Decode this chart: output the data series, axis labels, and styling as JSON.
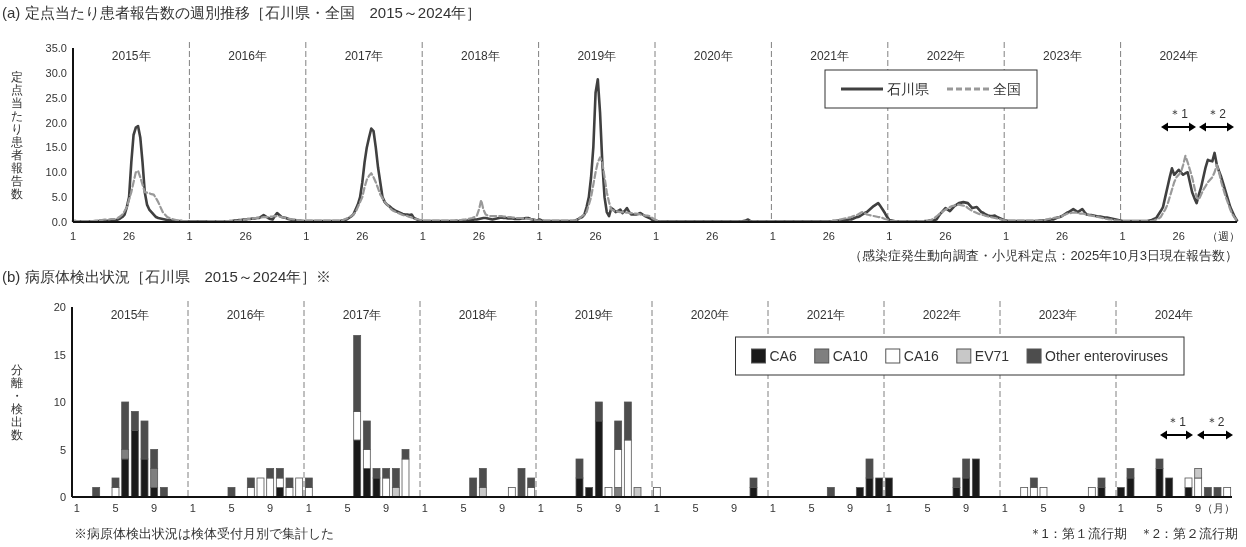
{
  "chart_data": [
    {
      "type": "line",
      "title": "(a) 定点当たり患者報告数の週別推移［石川県・全国　2015～2024年］",
      "ylabel": "定点当たり患者報告数",
      "xlabel": "（週）",
      "ylim": [
        0,
        35
      ],
      "yticks": [
        {
          "value": 0,
          "label": "0.0"
        },
        {
          "value": 5,
          "label": "5.0"
        },
        {
          "value": 10,
          "label": "10.0"
        },
        {
          "value": 15,
          "label": "15.0"
        },
        {
          "value": 20,
          "label": "20.0"
        },
        {
          "value": 25,
          "label": "25.0"
        },
        {
          "value": 30,
          "label": "30.0"
        },
        {
          "value": 35,
          "label": "35.0"
        }
      ],
      "categories": [
        "1",
        null,
        null,
        null,
        null,
        null,
        null,
        null,
        null,
        null,
        null,
        null,
        null,
        null,
        null,
        null,
        null,
        null,
        null,
        null,
        null,
        null,
        null,
        null,
        null,
        "26",
        null,
        null,
        null,
        null,
        null,
        null,
        null,
        null,
        null,
        null,
        null,
        null,
        null,
        null,
        null,
        null,
        null,
        null,
        null,
        null,
        null,
        null,
        null,
        null,
        null,
        null,
        "1",
        null,
        null,
        null,
        null,
        null,
        null,
        null,
        null,
        null,
        null,
        null,
        null,
        null,
        null,
        null,
        null,
        null,
        null,
        null,
        null,
        null,
        null,
        null,
        null,
        "26",
        null,
        null,
        null,
        null,
        null,
        null,
        null,
        null,
        null,
        null,
        null,
        null,
        null,
        null,
        null,
        null,
        null,
        null,
        null,
        null,
        null,
        null,
        null,
        null,
        null,
        null,
        "1",
        null,
        null,
        null,
        null,
        null,
        null,
        null,
        null,
        null,
        null,
        null,
        null,
        null,
        null,
        null,
        null,
        null,
        null,
        null,
        null,
        null,
        null,
        null,
        null,
        "26",
        null,
        null,
        null,
        null,
        null,
        null,
        null,
        null,
        null,
        null,
        null,
        null,
        null,
        null,
        null,
        null,
        null,
        null,
        null,
        null,
        null,
        null,
        null,
        null,
        null,
        null,
        "1",
        null,
        null,
        null,
        null,
        null,
        null,
        null,
        null,
        null,
        null,
        null,
        null,
        null,
        null,
        null,
        null,
        null,
        null,
        null,
        null,
        null,
        null,
        null,
        null,
        "26",
        null,
        null,
        null,
        null,
        null,
        null,
        null,
        null,
        null,
        null,
        null,
        null,
        null,
        null,
        null,
        null,
        null,
        null,
        null,
        null,
        null,
        null,
        null,
        null,
        null,
        null,
        "1",
        null,
        null,
        null,
        null,
        null,
        null,
        null,
        null,
        null,
        null,
        null,
        null,
        null,
        null,
        null,
        null,
        null,
        null,
        null,
        null,
        null,
        null,
        null,
        null,
        "26",
        null,
        null,
        null,
        null,
        null,
        null,
        null,
        null,
        null,
        null,
        null,
        null,
        null,
        null,
        null,
        null,
        null,
        null,
        null,
        null,
        null,
        null,
        null,
        null,
        null,
        null,
        "1",
        null,
        null,
        null,
        null,
        null,
        null,
        null,
        null,
        null,
        null,
        null,
        null,
        null,
        null,
        null,
        null,
        null,
        null,
        null,
        null,
        null,
        null,
        null,
        null,
        "26",
        null,
        null,
        null,
        null,
        null,
        null,
        null,
        null,
        null,
        null,
        null,
        null,
        null,
        null,
        null,
        null,
        null,
        null,
        null,
        null,
        null,
        null,
        null,
        null,
        null,
        null,
        "1",
        null,
        null,
        null,
        null,
        null,
        null,
        null,
        null,
        null,
        null,
        null,
        null,
        null,
        null,
        null,
        null,
        null,
        null,
        null,
        null,
        null,
        null,
        null,
        null,
        "26",
        null,
        null,
        null,
        null,
        null,
        null,
        null,
        null,
        null,
        null,
        null,
        null,
        null,
        null,
        null,
        null,
        null,
        null,
        null,
        null,
        null,
        null,
        null,
        null,
        null,
        null,
        "1",
        null,
        null,
        null,
        null,
        null,
        null,
        null,
        null,
        null,
        null,
        null,
        null,
        null,
        null,
        null,
        null,
        null,
        null,
        null,
        null,
        null,
        null,
        null,
        null,
        "26",
        null,
        null,
        null,
        null,
        null,
        null,
        null,
        null,
        null,
        null,
        null,
        null,
        null,
        null,
        null,
        null,
        null,
        null,
        null,
        null,
        null,
        null,
        null,
        null,
        null,
        null,
        "1",
        null,
        null,
        null,
        null,
        null,
        null,
        null,
        null,
        null,
        null,
        null,
        null,
        null,
        null,
        null,
        null,
        null,
        null,
        null,
        null,
        null,
        null,
        null,
        null,
        "26",
        null,
        null,
        null,
        null,
        null,
        null,
        null,
        null,
        null,
        null,
        null,
        null,
        null,
        null,
        null,
        null,
        null,
        null,
        null,
        null,
        null,
        null,
        null,
        null,
        null,
        null,
        "1",
        null,
        null,
        null,
        null,
        null,
        null,
        null,
        null,
        null,
        null,
        null,
        null,
        null,
        null,
        null,
        null,
        null,
        null,
        null,
        null,
        null,
        null,
        null,
        null,
        "26",
        null,
        null,
        null,
        null,
        null,
        null,
        null,
        null,
        null,
        null,
        null,
        null,
        null,
        null,
        null,
        null,
        null,
        null,
        null,
        null,
        null,
        null,
        null,
        null,
        null,
        null
      ],
      "legend": "top right",
      "grid": false,
      "annotations": [
        "2015年",
        "2016年",
        "2017年",
        "2018年",
        "2019年",
        "2020年",
        "2021年",
        "2022年",
        "2023年",
        "2024年",
        "＊1",
        "＊2",
        "（感染症発生動向調査・小児科定点：2025年10月3日現在報告数）"
      ],
      "series": [
        {
          "name": "石川県",
          "color": "#404040",
          "line_style": "solid",
          "values": [
            0.2,
            0.2,
            0.1,
            0.1,
            0.1,
            0.1,
            0.1,
            0.1,
            0.1,
            0.1,
            0.1,
            0.2,
            0.2,
            0.2,
            0.2,
            0.2,
            0.3,
            0.3,
            0.3,
            0.3,
            0.5,
            0.7,
            1.0,
            1.5,
            3,
            5,
            12,
            17.5,
            19,
            19.3,
            17,
            12,
            6,
            3.5,
            2.5,
            2,
            1.5,
            1,
            0.8,
            0.7,
            0.6,
            0.5,
            0.4,
            0.4,
            0.3,
            0.3,
            0.2,
            0.2,
            0.2,
            0.1,
            0.1,
            0.1,
            0.1,
            0.1,
            0.1,
            0.1,
            0.1,
            0.1,
            0.1,
            0.1,
            0.1,
            0.1,
            0.1,
            0.1,
            0.1,
            0.1,
            0.1,
            0.1,
            0.1,
            0.1,
            0.2,
            0.2,
            0.3,
            0.3,
            0.4,
            0.4,
            0.5,
            0.5,
            0.6,
            0.6,
            0.7,
            0.7,
            0.8,
            0.8,
            1.1,
            1.4,
            1.1,
            0.8,
            0.6,
            0.5,
            1.2,
            1.8,
            1.4,
            1.0,
            0.9,
            0.8,
            0.6,
            0.5,
            0.4,
            0.4,
            0.3,
            0.3,
            0.2,
            0.2,
            0.2,
            0.2,
            0.2,
            0.2,
            0.2,
            0.2,
            0.2,
            0.2,
            0.2,
            0.2,
            0.2,
            0.2,
            0.2,
            0.2,
            0.2,
            0.2,
            0.3,
            0.4,
            0.5,
            0.8,
            1.1,
            1.5,
            2.5,
            3.5,
            5,
            8,
            12,
            15,
            17,
            18.8,
            18.3,
            15,
            11,
            8,
            5,
            4,
            3.5,
            3.2,
            2.8,
            2.5,
            2.2,
            2,
            1.8,
            1.6,
            1.5,
            1.5,
            1.4,
            1.5,
            0.8,
            0.6,
            0.4,
            0.3,
            0.2,
            0.2,
            0.2,
            0.2,
            0.2,
            0.2,
            0.2,
            0.2,
            0.2,
            0.2,
            0.2,
            0.2,
            0.2,
            0.2,
            0.2,
            0.2,
            0.2,
            0.2,
            0.2,
            0.3,
            0.3,
            0.4,
            0.4,
            0.5,
            0.5,
            0.6,
            0.7,
            0.8,
            0.8,
            0.7,
            0.6,
            0.5,
            0.6,
            0.7,
            0.8,
            0.9,
            0.8,
            0.8,
            0.7,
            0.7,
            0.7,
            0.6,
            0.6,
            0.6,
            0.7,
            0.7,
            0.8,
            0.8,
            0.6,
            0.5,
            0.4,
            0.3,
            0.5,
            0.3,
            0.2,
            0.2,
            0.2,
            0.2,
            0.2,
            0.2,
            0.2,
            0.2,
            0.2,
            0.2,
            0.2,
            0.2,
            0.2,
            0.2,
            0.3,
            0.5,
            0.8,
            1.0,
            1.5,
            3,
            5,
            9,
            15,
            26,
            28.7,
            22,
            12,
            5,
            2,
            1.2,
            2.8,
            2.5,
            2,
            2.2,
            2.5,
            1.8,
            2.2,
            2.8,
            2.0,
            1.5,
            1.5,
            1.5,
            1.6,
            1.8,
            1.5,
            1.2,
            1.0,
            0.8,
            0.5,
            0.3,
            0.2,
            0.1,
            0.1,
            0.1,
            0.1,
            0.1,
            0.1,
            0.1,
            0.1,
            0.1,
            0.1,
            0.1,
            0.1,
            0.1,
            0.1,
            0.1,
            0.1,
            0.1,
            0.1,
            0.1,
            0.1,
            0.1,
            0.1,
            0.1,
            0.1,
            0.1,
            0.1,
            0.1,
            0.1,
            0.1,
            0.1,
            0.1,
            0.1,
            0.1,
            0.1,
            0.1,
            0.1,
            0.1,
            0.1,
            0.2,
            0.3,
            0.5,
            0.2,
            0.1,
            0.1,
            0.1,
            0.1,
            0.1,
            0.1,
            0.1,
            0.1,
            0.1,
            0.1,
            0.1,
            0.1,
            0.1,
            0.1,
            0.1,
            0.1,
            0.1,
            0.1,
            0.1,
            0.1,
            0.1,
            0.1,
            0.1,
            0.1,
            0.1,
            0.1,
            0.1,
            0.1,
            0.1,
            0.1,
            0.1,
            0.1,
            0.1,
            0.1,
            0.1,
            0.1,
            0.2,
            0.2,
            0.3,
            0.3,
            0.3,
            0.4,
            0.4,
            0.5,
            0.5,
            0.7,
            0.9,
            1.0,
            1.2,
            1.5,
            1.8,
            2,
            2.4,
            2.8,
            3.2,
            3.5,
            3.8,
            3.2,
            2.5,
            1.8,
            1.0,
            0.4,
            0.3,
            0.2,
            0.1,
            0.1,
            0.1,
            0.1,
            0.1,
            0.1,
            0.1,
            0.1,
            0.1,
            0.1,
            0.1,
            0.1,
            0.1,
            0.2,
            0.2,
            0.3,
            0.3,
            0.4,
            0.5,
            1.2,
            1.8,
            2.3,
            2.8,
            2.5,
            2.2,
            2.7,
            3.2,
            3.5,
            3.8,
            3.9,
            4.0,
            3.9,
            3.8,
            3.3,
            2.8,
            2.9,
            3.0,
            2.5,
            2.0,
            1.8,
            1.5,
            1.3,
            1.2,
            1.2,
            1.3,
            1.0,
            0.8,
            0.6,
            0.4,
            0.3,
            0.2,
            0.2,
            0.2,
            0.2,
            0.2,
            0.2,
            0.2,
            0.2,
            0.2,
            0.2,
            0.2,
            0.2,
            0.2,
            0.2,
            0.3,
            0.3,
            0.3,
            0.4,
            0.4,
            0.5,
            0.5,
            0.7,
            0.9,
            1.0,
            1.2,
            1.5,
            1.8,
            2.0,
            2.3,
            2.6,
            2.3,
            2.0,
            2.3,
            2.6,
            2.0,
            1.5,
            1.4,
            1.4,
            1.3,
            1.2,
            1.1,
            1.1,
            1.0,
            0.9,
            0.9,
            0.8,
            0.7,
            0.6,
            0.5,
            0.4,
            0.3,
            0.2,
            0.2,
            0.2,
            0.2,
            0.2,
            0.2,
            0.2,
            0.2,
            0.2,
            0.2,
            0.2,
            0.2,
            0.3,
            0.4,
            0.6,
            0.8,
            1.5,
            2.2,
            3,
            5,
            7,
            9,
            10.8,
            9.5,
            10,
            10.5,
            10,
            9.5,
            9.8,
            10,
            8,
            6,
            4.8,
            3.8,
            5.5,
            7,
            9,
            11,
            12.5,
            12.3,
            12.2,
            13.9,
            11.5,
            10.2,
            9,
            7.5,
            6,
            4.5,
            3,
            2,
            1,
            0.3
          ]
        },
        {
          "name": "全国",
          "color": "#999999",
          "line_style": "dashed",
          "values": [
            0.2,
            0.2,
            0.2,
            0.2,
            0.2,
            0.2,
            0.2,
            0.2,
            0.2,
            0.2,
            0.3,
            0.3,
            0.4,
            0.4,
            0.5,
            0.5,
            0.5,
            0.6,
            0.6,
            0.6,
            0.8,
            1.1,
            1.5,
            2.2,
            3,
            4.5,
            6,
            8,
            10,
            10.3,
            9,
            7.5,
            6,
            5.9,
            5.8,
            5.6,
            5.5,
            4.8,
            4,
            3,
            2,
            1.5,
            1,
            0.8,
            0.6,
            0.5,
            0.4,
            0.3,
            0.3,
            0.2,
            0.2,
            0.2,
            0.1,
            0.1,
            0.1,
            0.1,
            0.1,
            0.1,
            0.1,
            0.1,
            0.2,
            0.2,
            0.2,
            0.2,
            0.2,
            0.2,
            0.2,
            0.2,
            0.2,
            0.2,
            0.2,
            0.2,
            0.2,
            0.2,
            0.3,
            0.4,
            0.4,
            0.5,
            0.6,
            0.6,
            0.7,
            0.8,
            0.8,
            0.9,
            0.9,
            1.0,
            1.0,
            1.0,
            1.1,
            1.1,
            1.2,
            1.2,
            1.1,
            1.0,
            0.9,
            0.8,
            0.7,
            0.6,
            0.5,
            0.5,
            0.4,
            0.4,
            0.3,
            0.3,
            0.3,
            0.3,
            0.3,
            0.3,
            0.3,
            0.3,
            0.3,
            0.3,
            0.3,
            0.3,
            0.3,
            0.3,
            0.3,
            0.3,
            0.3,
            0.3,
            0.3,
            0.5,
            0.7,
            0.9,
            1.2,
            1.5,
            2,
            3,
            4,
            5,
            7,
            8.5,
            9.3,
            9.8,
            9,
            8,
            6.8,
            5.5,
            4.8,
            4,
            3.5,
            3,
            2.5,
            2.2,
            2,
            1.8,
            1.6,
            1.4,
            1.3,
            1.2,
            1.0,
            0.9,
            0.7,
            0.6,
            0.5,
            0.4,
            0.3,
            0.3,
            0.3,
            0.3,
            0.3,
            0.3,
            0.3,
            0.3,
            0.3,
            0.3,
            0.3,
            0.3,
            0.3,
            0.3,
            0.3,
            0.4,
            0.4,
            0.4,
            0.5,
            0.5,
            0.6,
            0.7,
            0.8,
            1.0,
            1.2,
            2.5,
            4.4,
            2.5,
            1.5,
            1.3,
            1.2,
            1.2,
            1.2,
            1.2,
            1.2,
            1.2,
            1.1,
            1.1,
            1.0,
            1.0,
            0.9,
            0.9,
            0.8,
            0.8,
            0.8,
            0.7,
            0.7,
            0.6,
            0.6,
            0.5,
            0.4,
            0.3,
            0.3,
            0.2,
            0.3,
            0.3,
            0.3,
            0.3,
            0.3,
            0.3,
            0.3,
            0.3,
            0.3,
            0.3,
            0.3,
            0.3,
            0.3,
            0.3,
            0.3,
            0.5,
            0.8,
            1.2,
            1.5,
            2,
            3.5,
            5,
            7.5,
            10,
            12,
            13,
            12,
            9,
            6,
            4,
            2.5,
            2.3,
            2.2,
            2.1,
            2.0,
            2,
            1.9,
            1.9,
            1.8,
            1.8,
            1.7,
            1.7,
            1.6,
            1.5,
            1.4,
            1.3,
            1.3,
            1.2,
            0.9,
            0.6,
            0.4,
            0.2,
            0.1,
            0.1,
            0.1,
            0.1,
            0.1,
            0.1,
            0.1,
            0.1,
            0.1,
            0.1,
            0.1,
            0.1,
            0.1,
            0.1,
            0.1,
            0.1,
            0.1,
            0.1,
            0.1,
            0.1,
            0.1,
            0.1,
            0.1,
            0.1,
            0.1,
            0.1,
            0.1,
            0.1,
            0.1,
            0.1,
            0.1,
            0.1,
            0.1,
            0.1,
            0.1,
            0.1,
            0.1,
            0.1,
            0.1,
            0.1,
            0.1,
            0.1,
            0.1,
            0.1,
            0.1,
            0.1,
            0.1,
            0.1,
            0.1,
            0.1,
            0.1,
            0.1,
            0.1,
            0.1,
            0.1,
            0.1,
            0.1,
            0.1,
            0.1,
            0.1,
            0.1,
            0.1,
            0.1,
            0.1,
            0.1,
            0.1,
            0.1,
            0.1,
            0.1,
            0.1,
            0.1,
            0.1,
            0.1,
            0.1,
            0.1,
            0.1,
            0.1,
            0.3,
            0.3,
            0.4,
            0.5,
            0.6,
            0.7,
            0.8,
            0.9,
            1.0,
            1.2,
            1.3,
            1.5,
            1.8,
            2,
            1.8,
            1.5,
            1.4,
            1.3,
            1.2,
            1.1,
            1.0,
            1.0,
            0.8,
            0.6,
            0.5,
            0.3,
            0.2,
            0.2,
            0.2,
            0.2,
            0.2,
            0.2,
            0.2,
            0.2,
            0.2,
            0.2,
            0.2,
            0.2,
            0.2,
            0.2,
            0.2,
            0.2,
            0.2,
            0.3,
            0.5,
            0.8,
            1.1,
            1.5,
            1.8,
            2.2,
            2.5,
            2.7,
            3.0,
            3.2,
            3.3,
            3.4,
            3.5,
            3.4,
            3.3,
            3.2,
            2.8,
            2.5,
            2.2,
            2.0,
            1.8,
            1.6,
            1.5,
            1.4,
            1.2,
            1.1,
            1.0,
            0.9,
            0.8,
            0.7,
            0.6,
            0.5,
            0.4,
            0.3,
            0.3,
            0.3,
            0.3,
            0.3,
            0.3,
            0.3,
            0.3,
            0.3,
            0.3,
            0.3,
            0.3,
            0.3,
            0.3,
            0.3,
            0.3,
            0.3,
            0.3,
            0.5,
            0.6,
            0.7,
            0.8,
            0.9,
            0.9,
            1.0,
            1.2,
            1.4,
            1.6,
            1.8,
            1.8,
            1.9,
            1.9,
            1.8,
            1.7,
            1.7,
            1.6,
            1.5,
            1.4,
            1.3,
            1.2,
            1.1,
            1.0,
            0.9,
            0.8,
            0.7,
            0.6,
            0.5,
            0.5,
            0.4,
            0.3,
            0.3,
            0.2,
            0.2,
            0.2,
            0.2,
            0.2,
            0.2,
            0.2,
            0.2,
            0.2,
            0.2,
            0.2,
            0.2,
            0.2,
            0.2,
            0.2,
            0.3,
            0.5,
            0.7,
            1,
            1.8,
            2.5,
            3.5,
            5,
            6.5,
            8,
            9,
            9.5,
            10,
            11.5,
            13.3,
            12,
            10.5,
            9,
            7,
            5,
            4.5,
            5.5,
            6.5,
            7.2,
            8,
            8.5,
            9,
            10,
            11.5,
            10,
            8,
            6.5,
            5,
            3.8,
            2.5,
            1.5,
            0.8,
            0.3
          ]
        }
      ]
    },
    {
      "type": "bar",
      "stacked": true,
      "title": "(b) 病原体検出状況［石川県　2015～2024年］※",
      "ylabel": "分離・検出数",
      "xlabel": "（月）",
      "ylim": [
        0,
        20
      ],
      "yticks": [
        0,
        5,
        10,
        15,
        20
      ],
      "categories": [
        "1",
        null,
        null,
        null,
        "5",
        null,
        null,
        null,
        "9",
        null,
        null,
        null,
        "1",
        null,
        null,
        null,
        "5",
        null,
        null,
        null,
        "9",
        null,
        null,
        null,
        "1",
        null,
        null,
        null,
        "5",
        null,
        null,
        null,
        "9",
        null,
        null,
        null,
        "1",
        null,
        null,
        null,
        "5",
        null,
        null,
        null,
        "9",
        null,
        null,
        null,
        "1",
        null,
        null,
        null,
        "5",
        null,
        null,
        null,
        "9",
        null,
        null,
        null,
        "1",
        null,
        null,
        null,
        "5",
        null,
        null,
        null,
        "9",
        null,
        null,
        null,
        "1",
        null,
        null,
        null,
        "5",
        null,
        null,
        null,
        "9",
        null,
        null,
        null,
        "1",
        null,
        null,
        null,
        "5",
        null,
        null,
        null,
        "9",
        null,
        null,
        null,
        "1",
        null,
        null,
        null,
        "5",
        null,
        null,
        null,
        "9",
        null,
        null,
        null,
        "1",
        null,
        null,
        null,
        "5",
        null,
        null,
        null,
        "9",
        null,
        null,
        null
      ],
      "legend": "top right",
      "grid": false,
      "annotations": [
        "2015年",
        "2016年",
        "2017年",
        "2018年",
        "2019年",
        "2020年",
        "2021年",
        "2022年",
        "2023年",
        "2024年",
        "＊1",
        "＊2",
        "※病原体検出状況は検体受付月別で集計した",
        "＊1：第１流行期　＊2：第２流行期"
      ],
      "series": [
        {
          "name": "CA6",
          "color": "#1a1a1a",
          "values": [
            null,
            null,
            null,
            null,
            null,
            4,
            7,
            4,
            1,
            null,
            null,
            null,
            null,
            null,
            null,
            null,
            null,
            null,
            null,
            null,
            null,
            1,
            null,
            null,
            null,
            null,
            null,
            null,
            null,
            6,
            3,
            2,
            null,
            null,
            null,
            null,
            null,
            null,
            null,
            null,
            null,
            null,
            null,
            null,
            null,
            null,
            null,
            null,
            null,
            null,
            null,
            null,
            2,
            1,
            8,
            null,
            null,
            null,
            null,
            null,
            null,
            null,
            null,
            null,
            null,
            null,
            null,
            null,
            null,
            null,
            1,
            null,
            null,
            null,
            null,
            null,
            null,
            null,
            null,
            null,
            null,
            1,
            2,
            2,
            2,
            null,
            null,
            null,
            null,
            null,
            null,
            1,
            2,
            4,
            null,
            null,
            null,
            null,
            null,
            null,
            null,
            null,
            null,
            null,
            null,
            null,
            1,
            null,
            1,
            2,
            null,
            null,
            3,
            2,
            null,
            1,
            null,
            null,
            null,
            null
          ]
        },
        {
          "name": "CA10",
          "color": "#7f7f7f",
          "values": [
            null,
            null,
            null,
            null,
            null,
            1,
            null,
            null,
            2,
            null,
            null,
            null,
            null,
            null,
            null,
            null,
            null,
            null,
            null,
            null,
            null,
            null,
            null,
            null,
            null,
            null,
            null,
            null,
            null,
            null,
            null,
            null,
            null,
            null,
            null,
            null,
            null,
            null,
            null,
            null,
            null,
            null,
            null,
            null,
            null,
            null,
            null,
            null,
            null,
            null,
            null,
            null,
            null,
            null,
            null,
            null,
            1,
            null,
            null,
            null,
            null,
            null,
            null,
            null,
            null,
            null,
            null,
            null,
            null,
            null,
            null,
            null,
            null,
            null,
            null,
            null,
            null,
            null,
            null,
            null,
            null,
            null,
            null,
            null,
            null,
            null,
            null,
            null,
            null,
            null,
            null,
            null,
            null,
            null,
            null,
            null,
            null,
            null,
            null,
            null,
            null,
            null,
            null,
            null,
            null,
            null,
            null,
            null,
            null,
            null,
            null,
            null,
            null,
            null,
            null,
            null,
            null,
            null,
            null,
            null
          ]
        },
        {
          "name": "CA16",
          "color": "#ffffff",
          "values": [
            null,
            null,
            null,
            null,
            1,
            null,
            null,
            null,
            null,
            null,
            null,
            null,
            null,
            null,
            null,
            null,
            null,
            null,
            1,
            2,
            2,
            1,
            1,
            2,
            1,
            null,
            null,
            null,
            null,
            3,
            2,
            null,
            2,
            null,
            4,
            null,
            null,
            null,
            null,
            null,
            null,
            null,
            null,
            null,
            null,
            1,
            null,
            1,
            null,
            null,
            null,
            null,
            null,
            null,
            null,
            1,
            4,
            6,
            null,
            null,
            1,
            null,
            null,
            null,
            null,
            null,
            null,
            null,
            null,
            null,
            null,
            null,
            null,
            null,
            null,
            null,
            null,
            null,
            null,
            null,
            null,
            null,
            null,
            null,
            null,
            null,
            null,
            null,
            null,
            null,
            null,
            null,
            null,
            null,
            null,
            null,
            null,
            null,
            1,
            1,
            1,
            null,
            null,
            null,
            null,
            1,
            null,
            null,
            null,
            null,
            null,
            null,
            null,
            null,
            null,
            1,
            2,
            null,
            null,
            1
          ]
        },
        {
          "name": "EV71",
          "color": "#c8c8c8",
          "values": [
            null,
            null,
            null,
            null,
            null,
            null,
            null,
            null,
            null,
            null,
            null,
            null,
            null,
            null,
            null,
            null,
            null,
            null,
            null,
            null,
            null,
            null,
            null,
            null,
            null,
            null,
            null,
            null,
            null,
            null,
            null,
            null,
            null,
            1,
            null,
            null,
            null,
            null,
            null,
            null,
            null,
            null,
            1,
            null,
            null,
            null,
            null,
            null,
            null,
            null,
            null,
            null,
            null,
            null,
            null,
            null,
            null,
            null,
            1,
            null,
            null,
            null,
            null,
            null,
            null,
            null,
            null,
            null,
            null,
            null,
            null,
            null,
            null,
            null,
            null,
            null,
            null,
            null,
            null,
            null,
            null,
            null,
            null,
            null,
            null,
            null,
            null,
            null,
            null,
            null,
            null,
            null,
            null,
            null,
            null,
            null,
            null,
            null,
            null,
            null,
            null,
            null,
            null,
            null,
            null,
            null,
            null,
            null,
            null,
            null,
            null,
            null,
            null,
            null,
            null,
            null,
            1,
            null,
            null,
            null
          ]
        },
        {
          "name": "Other enteroviruses",
          "color": "#4d4d4d",
          "values": [
            null,
            null,
            1,
            null,
            1,
            5,
            2,
            4,
            2,
            1,
            null,
            null,
            null,
            null,
            null,
            null,
            1,
            null,
            1,
            null,
            1,
            1,
            1,
            null,
            1,
            null,
            null,
            null,
            null,
            8,
            3,
            1,
            1,
            2,
            1,
            null,
            null,
            null,
            null,
            null,
            null,
            2,
            2,
            null,
            null,
            null,
            3,
            1,
            null,
            null,
            null,
            null,
            2,
            null,
            2,
            null,
            3,
            4,
            null,
            null,
            null,
            null,
            null,
            null,
            null,
            null,
            null,
            null,
            null,
            null,
            1,
            null,
            null,
            null,
            null,
            null,
            null,
            null,
            1,
            null,
            null,
            null,
            2,
            null,
            null,
            null,
            null,
            null,
            null,
            null,
            null,
            1,
            2,
            null,
            null,
            null,
            null,
            null,
            null,
            1,
            null,
            null,
            null,
            null,
            null,
            null,
            1,
            null,
            null,
            1,
            null,
            null,
            1,
            null,
            null,
            null,
            null,
            1,
            1,
            null
          ]
        }
      ]
    }
  ]
}
